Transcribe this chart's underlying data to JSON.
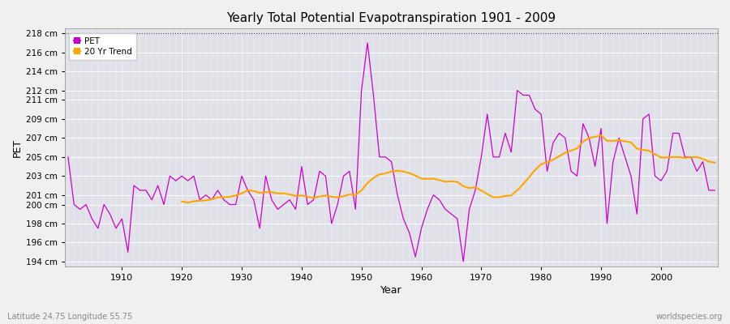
{
  "title": "Yearly Total Potential Evapotranspiration 1901 - 2009",
  "xlabel": "Year",
  "ylabel": "PET",
  "subtitle_left": "Latitude 24.75 Longitude 55.75",
  "subtitle_right": "worldspecies.org",
  "pet_color": "#cc00cc",
  "trend_color": "#ffa500",
  "background_color": "#f0f0f0",
  "plot_bg_color": "#e0e0e8",
  "ylim": [
    193.5,
    218.5
  ],
  "yticks": [
    194,
    196,
    198,
    200,
    201,
    203,
    205,
    207,
    209,
    211,
    212,
    214,
    216,
    218
  ],
  "xticks": [
    1910,
    1920,
    1930,
    1940,
    1950,
    1960,
    1970,
    1980,
    1990,
    2000
  ],
  "xlim": [
    1901,
    2009
  ],
  "years": [
    1901,
    1902,
    1903,
    1904,
    1905,
    1906,
    1907,
    1908,
    1909,
    1910,
    1911,
    1912,
    1913,
    1914,
    1915,
    1916,
    1917,
    1918,
    1919,
    1920,
    1921,
    1922,
    1923,
    1924,
    1925,
    1926,
    1927,
    1928,
    1929,
    1930,
    1931,
    1932,
    1933,
    1934,
    1935,
    1936,
    1937,
    1938,
    1939,
    1940,
    1941,
    1942,
    1943,
    1944,
    1945,
    1946,
    1947,
    1948,
    1949,
    1950,
    1951,
    1952,
    1953,
    1954,
    1955,
    1956,
    1957,
    1958,
    1959,
    1960,
    1961,
    1962,
    1963,
    1964,
    1965,
    1966,
    1967,
    1968,
    1969,
    1970,
    1971,
    1972,
    1973,
    1974,
    1975,
    1976,
    1977,
    1978,
    1979,
    1980,
    1981,
    1982,
    1983,
    1984,
    1985,
    1986,
    1987,
    1988,
    1989,
    1990,
    1991,
    1992,
    1993,
    1994,
    1995,
    1996,
    1997,
    1998,
    1999,
    2000,
    2001,
    2002,
    2003,
    2004,
    2005,
    2006,
    2007,
    2008,
    2009
  ],
  "pet_values": [
    205.0,
    200.0,
    199.5,
    200.0,
    198.5,
    197.5,
    200.0,
    199.0,
    197.5,
    198.5,
    195.0,
    202.0,
    201.5,
    201.5,
    200.5,
    202.0,
    200.0,
    203.0,
    202.5,
    203.0,
    202.5,
    203.0,
    200.5,
    201.0,
    200.5,
    201.5,
    200.5,
    200.0,
    200.0,
    203.0,
    201.5,
    200.5,
    197.5,
    203.0,
    200.5,
    199.5,
    200.0,
    200.5,
    199.5,
    204.0,
    200.0,
    200.5,
    203.5,
    203.0,
    198.0,
    200.0,
    203.0,
    203.5,
    199.5,
    212.0,
    217.0,
    211.5,
    205.0,
    205.0,
    204.5,
    201.0,
    198.5,
    197.0,
    194.5,
    197.5,
    199.5,
    201.0,
    200.5,
    199.5,
    199.0,
    198.5,
    194.0,
    199.5,
    201.5,
    205.0,
    209.5,
    205.0,
    205.0,
    207.5,
    205.5,
    212.0,
    211.5,
    211.5,
    210.0,
    209.5,
    203.5,
    206.5,
    207.5,
    207.0,
    203.5,
    203.0,
    208.5,
    207.0,
    204.0,
    208.0,
    198.0,
    204.5,
    207.0,
    205.0,
    203.0,
    199.0,
    209.0,
    209.5,
    203.0,
    202.5,
    203.5,
    207.5,
    207.5,
    205.0,
    205.0,
    203.5,
    204.5,
    201.5,
    201.5
  ]
}
